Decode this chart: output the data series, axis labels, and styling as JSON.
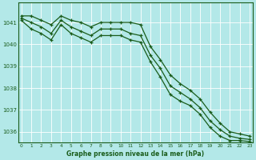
{
  "title": "Graphe pression niveau de la mer (hPa)",
  "bg_color": "#b3e8e8",
  "grid_color": "#ffffff",
  "line_color": "#1a5c1a",
  "hours": [
    0,
    1,
    2,
    3,
    4,
    5,
    6,
    7,
    8,
    9,
    10,
    11,
    12,
    13,
    14,
    15,
    16,
    17,
    18,
    19,
    20,
    21,
    22,
    23
  ],
  "line_top": [
    1041.3,
    1041.3,
    1041.1,
    1040.9,
    1041.3,
    1041.1,
    1041.0,
    1040.8,
    1041.0,
    1041.0,
    1041.0,
    1041.0,
    1040.9,
    1039.9,
    1039.3,
    1038.6,
    1038.2,
    1037.9,
    1037.5,
    1036.9,
    1036.4,
    1036.0,
    1035.9,
    1035.8
  ],
  "line_mid": [
    1041.2,
    1041.0,
    1040.8,
    1040.5,
    1041.1,
    1040.8,
    1040.6,
    1040.4,
    1040.7,
    1040.7,
    1040.7,
    1040.5,
    1040.4,
    1039.5,
    1038.9,
    1038.1,
    1037.8,
    1037.5,
    1037.1,
    1036.5,
    1036.1,
    1035.8,
    1035.7,
    1035.65
  ],
  "line_bot": [
    1041.1,
    1040.7,
    1040.5,
    1040.2,
    1040.9,
    1040.5,
    1040.3,
    1040.1,
    1040.4,
    1040.4,
    1040.4,
    1040.2,
    1040.1,
    1039.2,
    1038.5,
    1037.7,
    1037.4,
    1037.2,
    1036.8,
    1036.2,
    1035.8,
    1035.6,
    1035.6,
    1035.55
  ],
  "ylim_min": 1035.5,
  "ylim_max": 1041.9,
  "yticks": [
    1036,
    1037,
    1038,
    1039,
    1040,
    1041
  ],
  "text_color": "#1a5c1a",
  "marker_color": "#1a5c1a",
  "xlim_min": -0.3,
  "xlim_max": 23.3
}
